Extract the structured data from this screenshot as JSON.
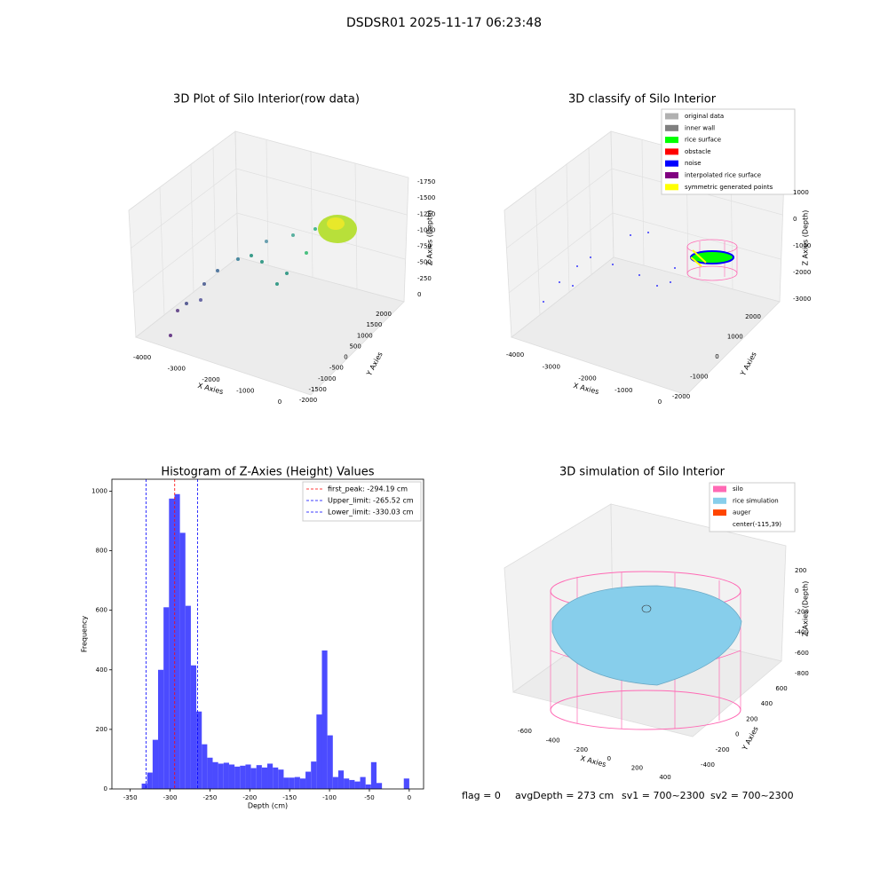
{
  "title": "DSDSR01 2025-11-17 06:23:48",
  "chart_data": [
    {
      "type": "scatter3d",
      "title": "3D Plot of Silo Interior(row data)",
      "xlabel": "X Axies",
      "ylabel": "Y Axies",
      "zlabel": "Z Axies (Depth)",
      "xticks": [
        -4000,
        -3000,
        -2000,
        -1000,
        0
      ],
      "yticks": [
        -2000,
        -1500,
        -1000,
        -500,
        0,
        500,
        1000,
        1500,
        2000
      ],
      "zticks": [
        0,
        -250,
        -500,
        -750,
        -1000,
        -1250,
        -1500,
        -1750
      ]
    },
    {
      "type": "scatter3d",
      "title": "3D classify of Silo Interior",
      "xlabel": "X Axies",
      "ylabel": "Y Axies",
      "zlabel": "Z Axies (Depth)",
      "xticks": [
        -4000,
        -3000,
        -2000,
        -1000,
        0
      ],
      "yticks": [
        -2000,
        -1000,
        0,
        1000,
        2000
      ],
      "zticks": [
        1000,
        0,
        -1000,
        -2000,
        -3000
      ],
      "series": [
        {
          "name": "original data",
          "color": "#b0b0b0"
        },
        {
          "name": "inner wall",
          "color": "#808080"
        },
        {
          "name": "rice surface",
          "color": "#00ff00"
        },
        {
          "name": "obstacle",
          "color": "#ff0000"
        },
        {
          "name": "noise",
          "color": "#0000ff"
        },
        {
          "name": "interpolated rice surface",
          "color": "#800080"
        },
        {
          "name": "symmetric generated points",
          "color": "#ffff00"
        }
      ]
    },
    {
      "type": "histogram",
      "title": "Histogram of Z-Axies (Height) Values",
      "xlabel": "Depth (cm)",
      "ylabel": "Frequency",
      "color": "#4b4bff",
      "bins": [
        -335.6,
        -328.75,
        -321.9,
        -315.05,
        -308.2,
        -301.35,
        -294.5,
        -287.65,
        -280.8,
        -273.95,
        -267.1,
        -260.25,
        -253.4,
        -246.55,
        -239.7,
        -232.85,
        -226,
        -219.15,
        -212.3,
        -205.45,
        -198.6,
        -191.75,
        -184.9,
        -178.05,
        -171.2,
        -164.35,
        -157.5,
        -150.65,
        -143.8,
        -136.95,
        -130.1,
        -123.25,
        -116.4,
        -109.55,
        -102.7,
        -95.85,
        -89,
        -82.15,
        -75.3,
        -68.45,
        -61.6,
        -54.75,
        -47.9,
        -41.05,
        -34.2,
        -27.35,
        -20.5,
        -13.65,
        -6.8,
        0.05
      ],
      "values": [
        18,
        55,
        165,
        400,
        610,
        975,
        990,
        860,
        615,
        415,
        260,
        150,
        105,
        90,
        85,
        88,
        82,
        75,
        78,
        82,
        70,
        80,
        72,
        85,
        72,
        65,
        38,
        38,
        40,
        35,
        58,
        92,
        250,
        465,
        180,
        40,
        62,
        35,
        30,
        25,
        40,
        15,
        90,
        20,
        0,
        0,
        0,
        0,
        35
      ],
      "xlim": [
        -373,
        18
      ],
      "ylim": [
        0,
        1040
      ],
      "xticks": [
        -350,
        -300,
        -250,
        -200,
        -150,
        -100,
        -50,
        0
      ],
      "yticks": [
        0,
        200,
        400,
        600,
        800,
        1000
      ],
      "lines": [
        {
          "name": "first_peak: -294.19 cm",
          "value": -294.19,
          "color": "#ff0000"
        },
        {
          "name": "Upper_limit: -265.52 cm",
          "value": -265.52,
          "color": "#0000ff"
        },
        {
          "name": "Lower_limit: -330.03 cm",
          "value": -330.03,
          "color": "#0000ff"
        }
      ]
    },
    {
      "type": "surface3d",
      "title": "3D simulation of Silo Interior",
      "xlabel": "X Axies",
      "ylabel": "Y Axies",
      "zlabel": "Z Axies (Depth)",
      "xticks": [
        -600,
        -400,
        -200,
        0,
        200,
        400
      ],
      "yticks": [
        -400,
        -200,
        0,
        200,
        400,
        600
      ],
      "zticks": [
        200,
        0,
        -200,
        -400,
        -600,
        -800
      ],
      "series": [
        {
          "name": "silo",
          "color": "#ff69b4"
        },
        {
          "name": "rice simulation",
          "color": "#87ceeb"
        },
        {
          "name": "auger",
          "color": "#ff4500"
        },
        {
          "name": "center(-115,39)",
          "color": null
        }
      ]
    }
  ],
  "footer": [
    "flag = 0",
    "avgDepth = 273 cm",
    "sv1 = 700~2300",
    "sv2 = 700~2300"
  ]
}
